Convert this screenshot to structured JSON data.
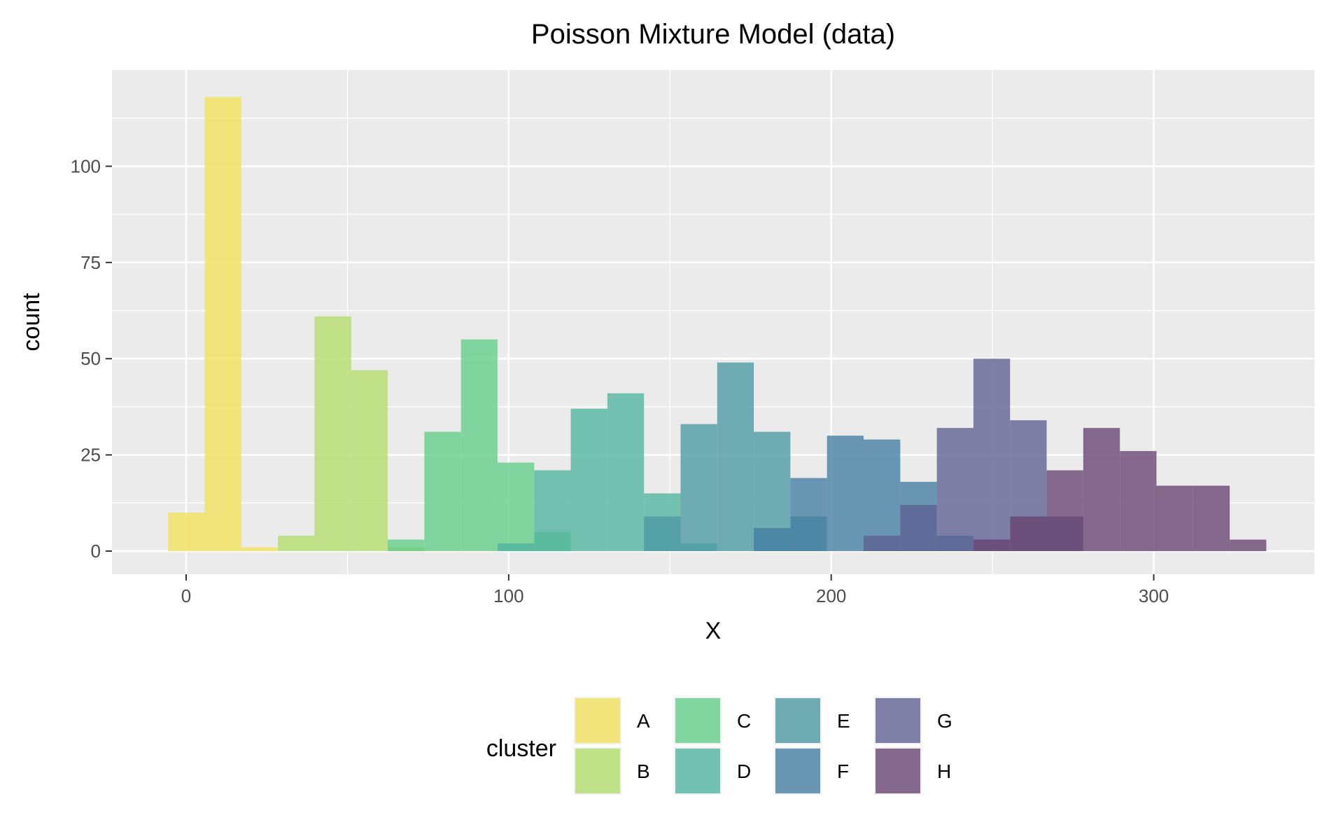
{
  "chart_data": {
    "type": "histogram",
    "title": "Poisson Mixture Model (data)",
    "xlabel": "X",
    "ylabel": "count",
    "xlim": [
      -23,
      350
    ],
    "ylim": [
      -6,
      125
    ],
    "x_ticks": [
      0,
      100,
      200,
      300
    ],
    "y_ticks": [
      0,
      25,
      50,
      75,
      100
    ],
    "bin_width": 11.35,
    "bin_origin": -5.6,
    "grid": true,
    "legend": {
      "title": "cluster",
      "position": "bottom",
      "entries": [
        "A",
        "B",
        "C",
        "D",
        "E",
        "F",
        "G",
        "H"
      ]
    },
    "series": [
      {
        "name": "A",
        "color": "#f1e05a",
        "bins": [
          [
            0,
            10
          ],
          [
            1,
            118
          ],
          [
            2,
            1
          ]
        ]
      },
      {
        "name": "B",
        "color": "#b2dc6a",
        "bins": [
          [
            3,
            4
          ],
          [
            4,
            61
          ],
          [
            5,
            47
          ],
          [
            6,
            1
          ]
        ]
      },
      {
        "name": "C",
        "color": "#62cd86",
        "bins": [
          [
            6,
            3
          ],
          [
            7,
            31
          ],
          [
            8,
            55
          ],
          [
            9,
            23
          ],
          [
            10,
            5
          ]
        ]
      },
      {
        "name": "D",
        "color": "#4fb39f",
        "bins": [
          [
            9,
            2
          ],
          [
            10,
            21
          ],
          [
            11,
            37
          ],
          [
            12,
            41
          ],
          [
            13,
            15
          ],
          [
            14,
            2
          ]
        ]
      },
      {
        "name": "E",
        "color": "#4b99a3",
        "bins": [
          [
            13,
            9
          ],
          [
            14,
            33
          ],
          [
            15,
            49
          ],
          [
            16,
            31
          ],
          [
            17,
            9
          ]
        ]
      },
      {
        "name": "F",
        "color": "#437da2",
        "bins": [
          [
            16,
            6
          ],
          [
            17,
            19
          ],
          [
            18,
            30
          ],
          [
            19,
            29
          ],
          [
            20,
            18
          ],
          [
            21,
            4
          ]
        ]
      },
      {
        "name": "G",
        "color": "#5c5f92",
        "bins": [
          [
            19,
            4
          ],
          [
            20,
            12
          ],
          [
            21,
            32
          ],
          [
            22,
            50
          ],
          [
            23,
            34
          ],
          [
            24,
            9
          ]
        ]
      },
      {
        "name": "H",
        "color": "#67426f",
        "bins": [
          [
            22,
            3
          ],
          [
            23,
            9
          ],
          [
            24,
            21
          ],
          [
            25,
            32
          ],
          [
            26,
            26
          ],
          [
            27,
            17
          ],
          [
            28,
            17
          ],
          [
            29,
            3
          ]
        ]
      }
    ]
  }
}
